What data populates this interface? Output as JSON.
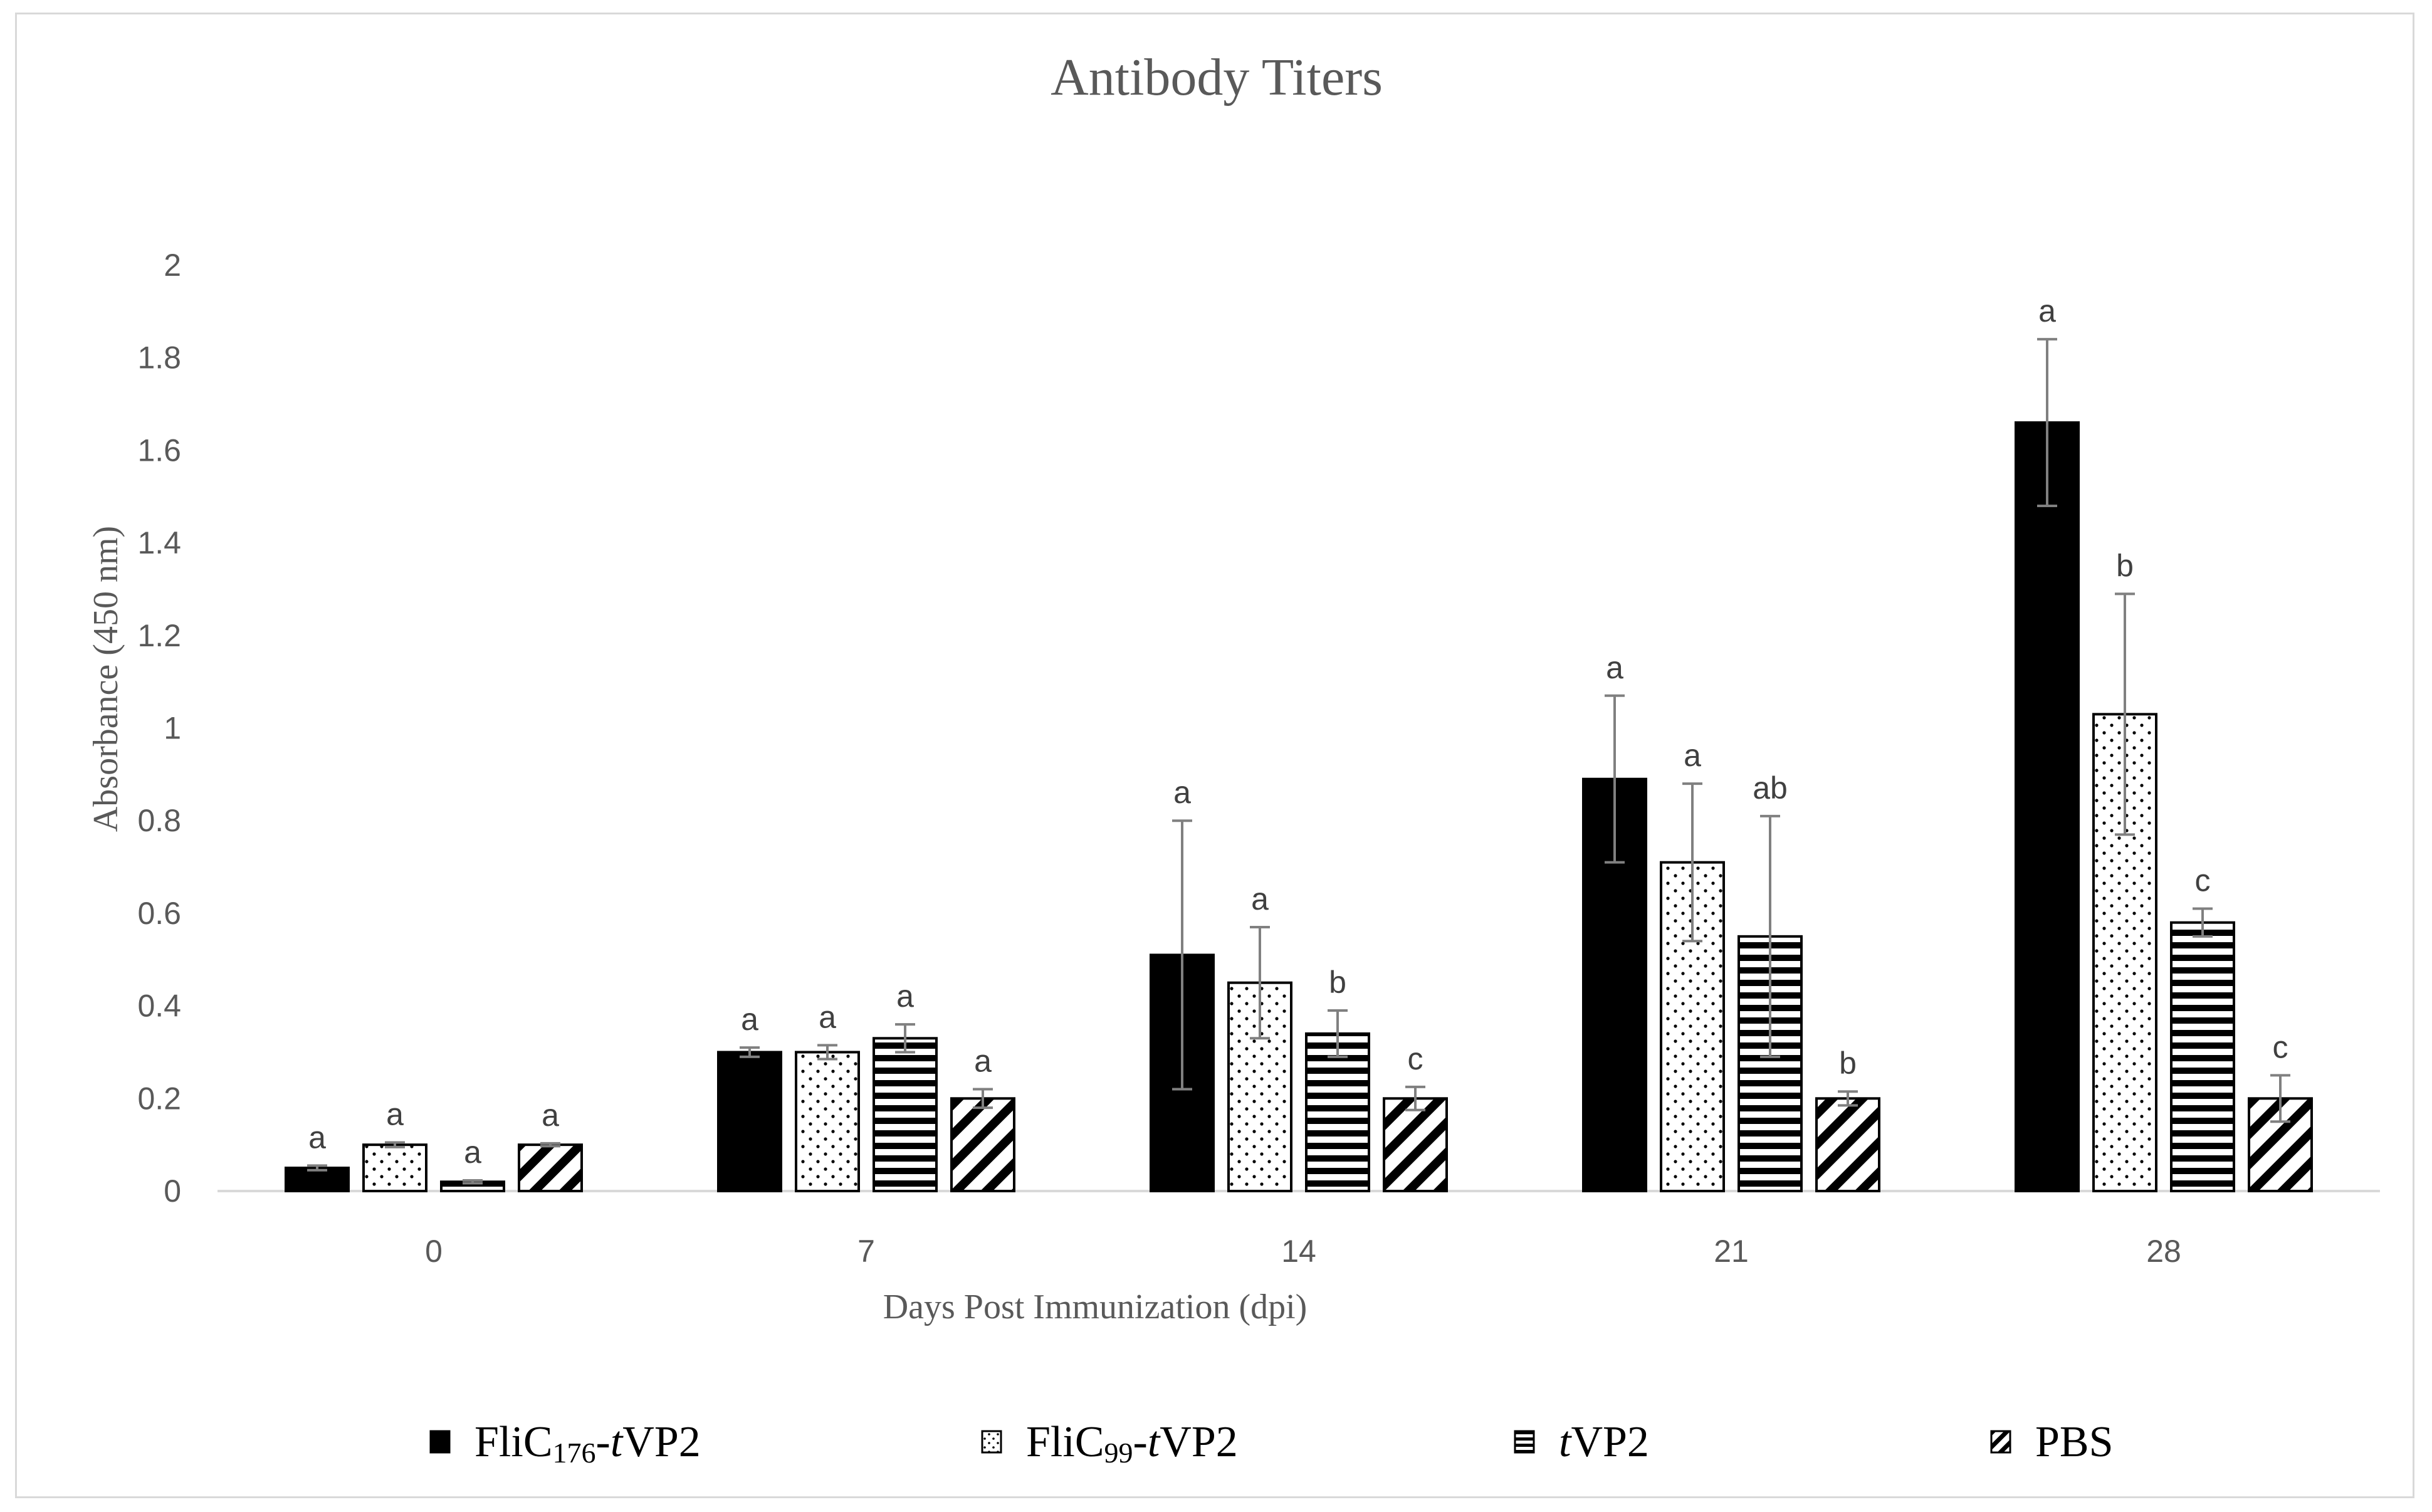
{
  "chart_data": {
    "type": "bar",
    "title": "Antibody Titers",
    "xlabel": "Days Post Immunization  (dpi)",
    "ylabel": "Absorbance (450 nm)",
    "ylim": [
      0,
      2
    ],
    "yticks": [
      "0",
      "0.2",
      "0.4",
      "0.6",
      "0.8",
      "1",
      "1.2",
      "1.4",
      "1.6",
      "1.8",
      "2"
    ],
    "categories": [
      "0",
      "7",
      "14",
      "21",
      "28"
    ],
    "legend_position": "bottom",
    "series": [
      {
        "name": "FliC176-tVP2",
        "legend": {
          "pre": "FliC",
          "sub": "176",
          "mid": "-",
          "ital": "t",
          "post": "VP2"
        },
        "pattern": "solid",
        "values": [
          0.05,
          0.3,
          0.51,
          0.89,
          1.66
        ],
        "errors": [
          0.005,
          0.01,
          0.29,
          0.18,
          0.18
        ],
        "letters": [
          "a",
          "a",
          "a",
          "a",
          "a"
        ]
      },
      {
        "name": "FliC99-tVP2",
        "legend": {
          "pre": "FliC",
          "sub": "99",
          "mid": "-",
          "ital": "t",
          "post": "VP2"
        },
        "pattern": "dots",
        "values": [
          0.1,
          0.3,
          0.45,
          0.71,
          1.03
        ],
        "errors": [
          0.005,
          0.015,
          0.12,
          0.17,
          0.26
        ],
        "letters": [
          "a",
          "a",
          "a",
          "a",
          "b"
        ]
      },
      {
        "name": "tVP2",
        "legend": {
          "pre": "",
          "sub": "",
          "mid": "",
          "ital": "t",
          "post": "VP2"
        },
        "pattern": "hlines",
        "values": [
          0.02,
          0.33,
          0.34,
          0.55,
          0.58
        ],
        "errors": [
          0.003,
          0.03,
          0.05,
          0.26,
          0.03
        ],
        "letters": [
          "a",
          "a",
          "b",
          "ab",
          "c"
        ]
      },
      {
        "name": "PBS",
        "legend": {
          "pre": "PBS",
          "sub": "",
          "mid": "",
          "ital": "",
          "post": ""
        },
        "pattern": "diag",
        "values": [
          0.1,
          0.2,
          0.2,
          0.2,
          0.2
        ],
        "errors": [
          0.003,
          0.02,
          0.025,
          0.015,
          0.05
        ],
        "letters": [
          "a",
          "a",
          "c",
          "b",
          "c"
        ]
      }
    ],
    "colors": {
      "text": "#595959",
      "bar_fill": "#000000",
      "axis": "#d9d9d9",
      "error": "#808080"
    }
  }
}
